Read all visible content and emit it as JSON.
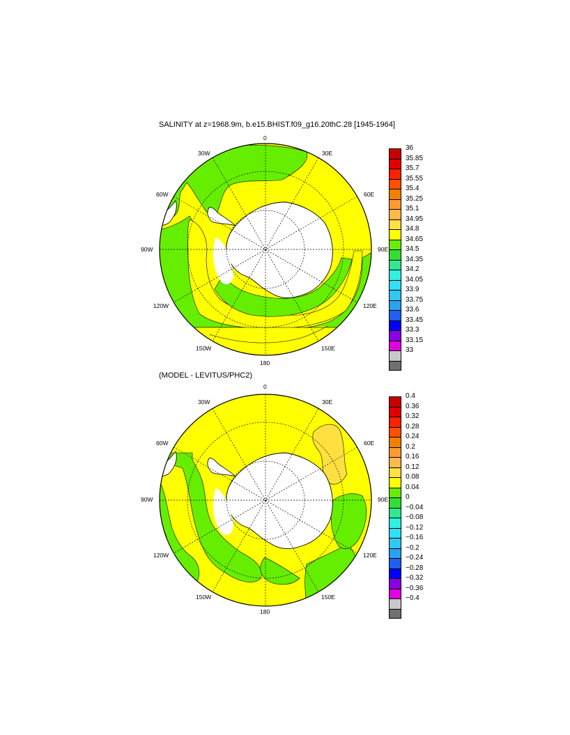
{
  "panel1": {
    "title": "SALINITY at z=1968.9m, b.e15.BHIST.f09_g16.20thC.28 [1945-1964]",
    "lon_labels": {
      "n": "0",
      "nw30": "30W",
      "ne30": "30E",
      "w60": "60W",
      "e60": "60E",
      "w90": "90W",
      "e90": "90E",
      "w120": "120W",
      "e120": "120E",
      "w150": "150W",
      "e150": "150E",
      "s": "180"
    },
    "colorbar": {
      "labels": [
        "36",
        "35.85",
        "35.7",
        "35.55",
        "35.4",
        "35.25",
        "35.1",
        "34.95",
        "34.8",
        "34.65",
        "34.5",
        "34.35",
        "34.2",
        "34.05",
        "33.9",
        "33.75",
        "33.6",
        "33.45",
        "33.3",
        "33.15",
        "33"
      ],
      "colors": [
        "#c80000",
        "#e00000",
        "#ff2000",
        "#ff5000",
        "#f08000",
        "#ff9a30",
        "#ffb84a",
        "#ffe040",
        "#ffff00",
        "#66ee00",
        "#33dd33",
        "#30e890",
        "#30f0e0",
        "#30e0f8",
        "#30c8f0",
        "#2aa0f0",
        "#1e60f0",
        "#0000ff",
        "#8a00e0",
        "#e000e0",
        "#c8c8c8",
        "#707070"
      ]
    }
  },
  "panel2": {
    "title": "(MODEL - LEVITUS/PHC2)",
    "lon_labels": {
      "n": "0",
      "nw30": "30W",
      "ne30": "30E",
      "w60": "60W",
      "e60": "60E",
      "w90": "90W",
      "e90": "90E",
      "w120": "120W",
      "e120": "120E",
      "w150": "150W",
      "e150": "150E",
      "s": "180"
    },
    "colorbar": {
      "labels": [
        "0.4",
        "0.36",
        "0.32",
        "0.28",
        "0.24",
        "0.2",
        "0.16",
        "0.12",
        "0.08",
        "0.04",
        "0",
        "−0.04",
        "−0.08",
        "−0.12",
        "−0.16",
        "−0.2",
        "−0.24",
        "−0.28",
        "−0.32",
        "−0.36",
        "−0.4"
      ],
      "colors": [
        "#c80000",
        "#e00000",
        "#ff2000",
        "#ff5000",
        "#f08000",
        "#ff9a30",
        "#ffb84a",
        "#ffe040",
        "#ffff00",
        "#66ee00",
        "#33dd33",
        "#30e890",
        "#30f0e0",
        "#30e0f8",
        "#30c8f0",
        "#2aa0f0",
        "#1e60f0",
        "#0000ff",
        "#8a00e0",
        "#e000e0",
        "#c8c8c8",
        "#707070"
      ]
    }
  }
}
